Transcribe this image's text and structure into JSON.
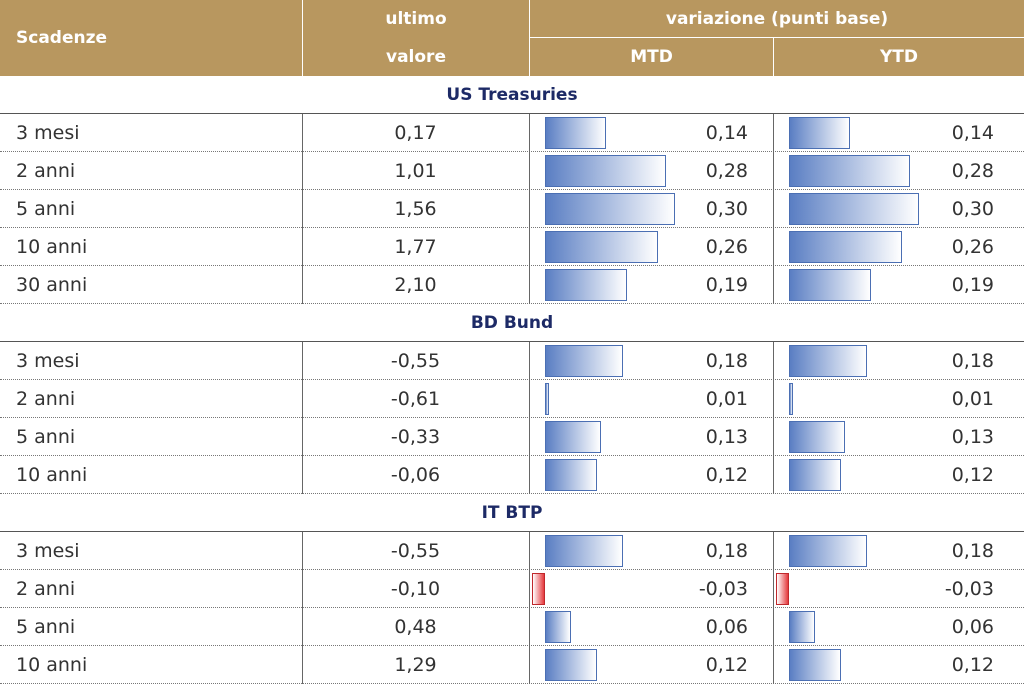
{
  "header": {
    "maturity": "Scadenze",
    "last_line1": "ultimo",
    "last_line2": "valore",
    "change_group": "variazione (punti base)",
    "mtd": "MTD",
    "ytd": "YTD"
  },
  "sections": [
    {
      "title": "US Treasuries",
      "rows": [
        [
          "3 mesi",
          "0,17",
          "0,14",
          "0,14"
        ],
        [
          "2 anni",
          "1,01",
          "0,28",
          "0,28"
        ],
        [
          "5 anni",
          "1,56",
          "0,30",
          "0,30"
        ],
        [
          "10 anni",
          "1,77",
          "0,26",
          "0,26"
        ],
        [
          "30 anni",
          "2,10",
          "0,19",
          "0,19"
        ]
      ]
    },
    {
      "title": "BD Bund",
      "rows": [
        [
          "3 mesi",
          "-0,55",
          "0,18",
          "0,18"
        ],
        [
          "2 anni",
          "-0,61",
          "0,01",
          "0,01"
        ],
        [
          "5 anni",
          "-0,33",
          "0,13",
          "0,13"
        ],
        [
          "10 anni",
          "-0,06",
          "0,12",
          "0,12"
        ]
      ]
    },
    {
      "title": "IT BTP",
      "rows": [
        [
          "3 mesi",
          "-0,55",
          "0,18",
          "0,18"
        ],
        [
          "2 anni",
          "-0,10",
          "-0,03",
          "-0,03"
        ],
        [
          "5 anni",
          "0,48",
          "0,06",
          "0,06"
        ],
        [
          "10 anni",
          "1,29",
          "0,12",
          "0,12"
        ]
      ]
    }
  ]
}
